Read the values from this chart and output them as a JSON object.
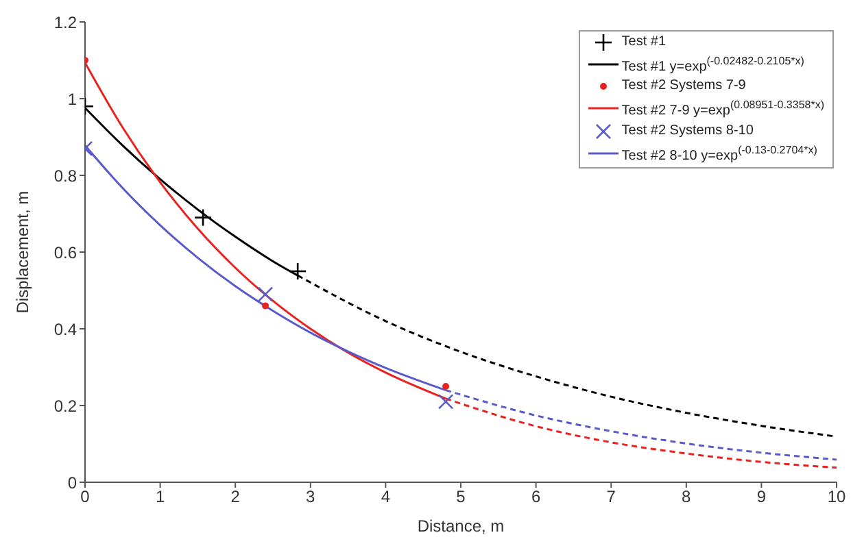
{
  "chart_data": {
    "type": "scatter",
    "xlabel": "Distance, m",
    "ylabel": "Displacement, m",
    "xlim": [
      0,
      10
    ],
    "ylim": [
      0,
      1.2
    ],
    "xticks": [
      0,
      1,
      2,
      3,
      4,
      5,
      6,
      7,
      8,
      9,
      10
    ],
    "yticks": [
      0,
      0.2,
      0.4,
      0.6,
      0.8,
      1,
      1.2
    ],
    "grid": false,
    "legend": "top right",
    "series": [
      {
        "name": "Test #1",
        "marker": "cross",
        "color": "#000000",
        "x": [
          0,
          1.57,
          2.83
        ],
        "values": [
          0.98,
          0.69,
          0.55
        ]
      },
      {
        "name": "Test #1 y=exp$^{(-0.02482-0.2105*x)}$",
        "type": "line",
        "marker": "none",
        "line_style": "solid",
        "color": "#000000",
        "x": [
          0,
          0.5,
          1,
          1.5,
          2,
          2.5,
          2.83
        ],
        "values": [
          0.976,
          0.878,
          0.79,
          0.711,
          0.64,
          0.576,
          0.539
        ]
      },
      {
        "type": "line",
        "marker": "none",
        "line_style": "dashed",
        "color": "#000000",
        "x": [
          2.83,
          4,
          5,
          6,
          7,
          8,
          9,
          10
        ],
        "values": [
          0.539,
          0.42,
          0.34,
          0.276,
          0.223,
          0.181,
          0.147,
          0.119
        ]
      },
      {
        "name": "Test #2 Systems 7-9",
        "marker": "circle",
        "color": "#e8231f",
        "x": [
          0,
          2.4,
          4.8
        ],
        "values": [
          1.1,
          0.46,
          0.25
        ]
      },
      {
        "name": "Test #2 7-9 y=exp$^{(0.08951-0.3358*x)}$",
        "type": "line",
        "marker": "none",
        "line_style": "solid",
        "color": "#e8231f",
        "x": [
          0,
          0.5,
          1,
          1.5,
          2,
          2.5,
          3,
          3.5,
          4,
          4.8
        ],
        "values": [
          1.094,
          0.925,
          0.782,
          0.661,
          0.559,
          0.473,
          0.4,
          0.338,
          0.286,
          0.218
        ]
      },
      {
        "type": "line",
        "marker": "none",
        "line_style": "dashed",
        "color": "#e8231f",
        "x": [
          4.8,
          6,
          7,
          8,
          9,
          10
        ],
        "values": [
          0.218,
          0.146,
          0.104,
          0.075,
          0.053,
          0.038
        ]
      },
      {
        "name": "Test #2 Systems 8-10",
        "marker": "x",
        "color": "#5a5ac8",
        "x": [
          0,
          2.4,
          4.8
        ],
        "values": [
          0.87,
          0.49,
          0.21
        ]
      },
      {
        "name": "Test #2 8-10 y=exp$^{(-0.13-0.2704*x)}$",
        "type": "line",
        "marker": "none",
        "line_style": "solid",
        "color": "#5a5ac8",
        "x": [
          0,
          0.5,
          1,
          1.5,
          2,
          2.5,
          3,
          3.5,
          4,
          4.8
        ],
        "values": [
          0.878,
          0.767,
          0.67,
          0.585,
          0.511,
          0.447,
          0.39,
          0.341,
          0.298,
          0.24
        ]
      },
      {
        "type": "line",
        "marker": "none",
        "line_style": "dashed",
        "color": "#5a5ac8",
        "x": [
          4.8,
          6,
          7,
          8,
          9,
          10
        ],
        "values": [
          0.24,
          0.174,
          0.133,
          0.101,
          0.077,
          0.059
        ]
      }
    ]
  }
}
